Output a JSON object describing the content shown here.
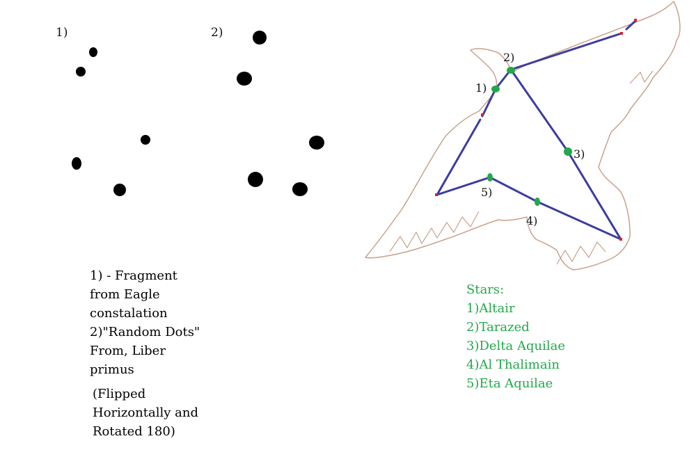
{
  "panel1": {
    "label": "1)"
  },
  "panel2": {
    "label": "2)"
  },
  "caption": {
    "lines": [
      "1) - Fragment",
      "from Eagle",
      "constalation",
      "2)\"Random Dots\"",
      "From, Liber",
      "primus"
    ],
    "note_lines": [
      "(Flipped",
      "Horizontally and",
      "Rotated 180)"
    ]
  },
  "constellation": {
    "star_labels": [
      "1)",
      "2)",
      "3)",
      "4)",
      "5)"
    ]
  },
  "legend": {
    "title": "Stars:",
    "items": [
      "1)Altair",
      "2)Tarazed",
      "3)Delta Aquilae",
      "4)Al Thalimain",
      "5)Eta Aquilae"
    ]
  },
  "colors": {
    "dots": "#000000",
    "lines": "#3c3ca0",
    "bird_outline": "#c9a08c",
    "highlight_stars": "#22a84a",
    "other_stars": "#e0202a",
    "legend_text": "#22a84a"
  }
}
